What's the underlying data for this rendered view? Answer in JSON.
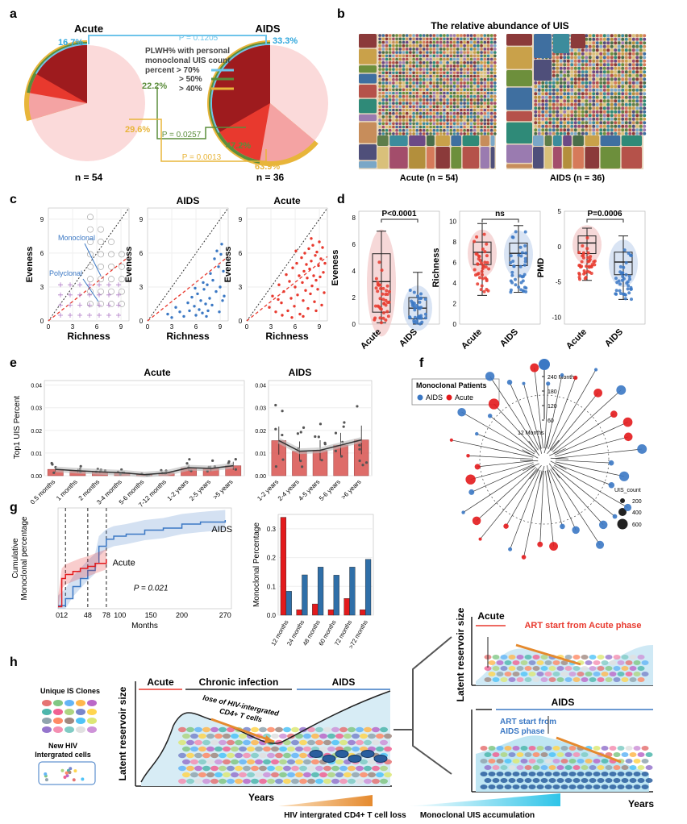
{
  "colors": {
    "dark_red": "#9e1b1e",
    "red": "#e8392e",
    "pink": "#f4a3a3",
    "light_pink": "#fbdada",
    "aids_blue": "#3b78c4",
    "green": "#5b8d3b",
    "cyan": "#27a8d8",
    "gold": "#e8b53a",
    "orange": "#e58a2e",
    "bar_red": "#e0443a",
    "bar_blue": "#2f6fa8"
  },
  "a": {
    "panel": "a",
    "left_title": "Acute",
    "right_title": "AIDS",
    "left_pcts": [
      "16.7%",
      "22.2%",
      "29.6%"
    ],
    "right_pcts": [
      "33.3%",
      "47.2%",
      "63.9%"
    ],
    "pvals": [
      "P = 0.1205",
      "P = 0.0257",
      "P = 0.0013"
    ],
    "legend_title_lines": [
      "PLWH% with personal",
      "monoclonal UIS count",
      "percent > 70%"
    ],
    "legend_items": [
      " > 50%",
      " > 40%"
    ],
    "left_n": "n = 54",
    "right_n": "n = 36",
    "chart_data": {
      "type": "pie",
      "title": "PLWH% with personal monoclonal UIS count percent",
      "series": [
        {
          "name": "Acute",
          "n": 54,
          "values": {
            ">70%": 16.7,
            ">50%": 22.2,
            ">40%": 29.6
          }
        },
        {
          "name": "AIDS",
          "n": 36,
          "values": {
            ">70%": 33.3,
            ">50%": 47.2,
            ">40%": 63.9
          }
        }
      ],
      "pvalues": {
        ">70%": 0.1205,
        ">50%": 0.0257,
        ">40%": 0.0013
      }
    }
  },
  "b": {
    "panel": "b",
    "title": "The relative abundance of UIS",
    "left_label": "Acute (n = 54)",
    "right_label": "AIDS (n = 36)"
  },
  "c": {
    "panel": "c",
    "xlabel": "Richness",
    "ylabel": "Eveness",
    "titles": [
      "",
      "AIDS",
      "Acute"
    ],
    "xticks": [
      "0",
      "3",
      "6",
      "9"
    ],
    "yticks": [
      "0",
      "3",
      "6",
      "9"
    ],
    "annotations": {
      "mono": "Monoclonal",
      "poly": "Polyclonal"
    },
    "chart_data": {
      "type": "scatter",
      "xlabel": "Richness",
      "ylabel": "Eveness",
      "xlim": [
        0,
        10
      ],
      "ylim": [
        0,
        10
      ],
      "series": [
        {
          "name": "AIDS",
          "points": [
            [
              2.5,
              0.6
            ],
            [
              3,
              0.3
            ],
            [
              3.5,
              1.2
            ],
            [
              4,
              0.8
            ],
            [
              4.5,
              0.4
            ],
            [
              5,
              1.6
            ],
            [
              5.2,
              0.9
            ],
            [
              5.5,
              2.1
            ],
            [
              5.8,
              1.3
            ],
            [
              6,
              0.5
            ],
            [
              6.2,
              2.4
            ],
            [
              6.4,
              1.0
            ],
            [
              6.6,
              1.8
            ],
            [
              6.8,
              0.7
            ],
            [
              7,
              2.8
            ],
            [
              7.2,
              1.5
            ],
            [
              7.4,
              3.2
            ],
            [
              7.5,
              0.9
            ],
            [
              7.7,
              2.0
            ],
            [
              7.8,
              4.2
            ],
            [
              8,
              1.4
            ],
            [
              8.1,
              3.6
            ],
            [
              8.3,
              5.5
            ],
            [
              8.5,
              2.6
            ],
            [
              8.6,
              6.2
            ],
            [
              8.8,
              4.8
            ],
            [
              9,
              3.0
            ],
            [
              9.1,
              5.9
            ],
            [
              9.2,
              6.8
            ],
            [
              9.3,
              1.8
            ],
            [
              9.4,
              4.4
            ],
            [
              9.5,
              2.2
            ],
            [
              8.9,
              0.8
            ],
            [
              6.9,
              3.4
            ],
            [
              5.9,
              2.9
            ],
            [
              7.3,
              0.4
            ]
          ]
        },
        {
          "name": "Acute",
          "points": [
            [
              2.8,
              1.2
            ],
            [
              3.2,
              2.2
            ],
            [
              3.6,
              0.8
            ],
            [
              4,
              3.2
            ],
            [
              4.3,
              1.6
            ],
            [
              4.6,
              2.6
            ],
            [
              4.9,
              4.1
            ],
            [
              5.1,
              0.9
            ],
            [
              5.3,
              3.5
            ],
            [
              5.5,
              2.0
            ],
            [
              5.7,
              4.7
            ],
            [
              5.9,
              1.3
            ],
            [
              6,
              3.0
            ],
            [
              6.2,
              5.1
            ],
            [
              6.3,
              2.3
            ],
            [
              6.5,
              4.0
            ],
            [
              6.6,
              0.6
            ],
            [
              6.8,
              5.6
            ],
            [
              6.9,
              3.4
            ],
            [
              7,
              1.8
            ],
            [
              7.1,
              4.4
            ],
            [
              7.2,
              6.0
            ],
            [
              7.3,
              2.7
            ],
            [
              7.4,
              5.0
            ],
            [
              7.5,
              3.8
            ],
            [
              7.6,
              1.1
            ],
            [
              7.7,
              6.4
            ],
            [
              7.8,
              4.6
            ],
            [
              7.9,
              2.4
            ],
            [
              8,
              5.3
            ],
            [
              8.1,
              3.1
            ],
            [
              8.2,
              6.7
            ],
            [
              8.3,
              4.0
            ],
            [
              8.4,
              1.7
            ],
            [
              8.5,
              5.8
            ],
            [
              8.6,
              3.6
            ],
            [
              8.7,
              6.1
            ],
            [
              8.8,
              2.8
            ],
            [
              8.9,
              4.9
            ],
            [
              9,
              7.0
            ],
            [
              9.1,
              3.9
            ],
            [
              9.2,
              5.5
            ],
            [
              9.3,
              1.4
            ],
            [
              9.4,
              6.5
            ],
            [
              9.5,
              4.3
            ],
            [
              9.6,
              2.5
            ],
            [
              8.0,
              7.3
            ],
            [
              7.0,
              0.4
            ],
            [
              6.1,
              6.2
            ],
            [
              5.6,
              0.3
            ],
            [
              4.4,
              0.5
            ],
            [
              9.7,
              5.1
            ],
            [
              3.9,
              1.9
            ],
            [
              8.6,
              0.9
            ]
          ]
        }
      ]
    }
  },
  "d": {
    "panel": "d",
    "plots": [
      {
        "ylabel": "Eveness",
        "sig": "P<0.0001",
        "yticks": [
          "0",
          "2",
          "4",
          "6",
          "8"
        ],
        "ymin": 0,
        "ymax": 8.5
      },
      {
        "ylabel": "Richness",
        "sig": "ns",
        "yticks": [
          "0",
          "2",
          "4",
          "6",
          "8",
          "10"
        ],
        "ymin": 0,
        "ymax": 11
      },
      {
        "ylabel": "PMD",
        "sig": "P=0.0006",
        "yticks": [
          "-10",
          "-5",
          "0",
          "5"
        ],
        "ymin": -11,
        "ymax": 5
      }
    ],
    "groups": [
      "Acute",
      "AIDS"
    ],
    "chart_data": {
      "type": "box",
      "groups": [
        "Acute",
        "AIDS"
      ],
      "series": [
        {
          "name": "Eveness",
          "pvalue": "P<0.0001",
          "Acute": {
            "min": 0.1,
            "q1": 0.9,
            "median": 3.2,
            "q3": 5.3,
            "max": 7.0
          },
          "AIDS": {
            "min": 0.0,
            "q1": 0.4,
            "median": 1.2,
            "q3": 2.0,
            "max": 3.9
          }
        },
        {
          "name": "Richness",
          "pvalue": "ns",
          "Acute": {
            "min": 2.8,
            "q1": 5.8,
            "median": 7.0,
            "q3": 8.0,
            "max": 9.8
          },
          "AIDS": {
            "min": 3.1,
            "q1": 5.7,
            "median": 6.9,
            "q3": 7.9,
            "max": 9.6
          }
        },
        {
          "name": "PMD",
          "pvalue": "P=0.0006",
          "Acute": {
            "min": -4.8,
            "q1": -1.0,
            "median": 0.5,
            "q3": 1.5,
            "max": 2.6
          },
          "AIDS": {
            "min": -7.5,
            "q1": -4.0,
            "median": -2.2,
            "q3": -0.8,
            "max": 1.5
          }
        }
      ]
    }
  },
  "e": {
    "panel": "e",
    "left_title": "Acute",
    "right_title": "AIDS",
    "ylabel": "Top1 UIS Percent",
    "left_yticks": [
      "0.00",
      "0.01",
      "0.02",
      "0.03",
      "0.04"
    ],
    "right_yticks": [
      "0.00",
      "0.01",
      "0.02",
      "0.03",
      "0.04"
    ],
    "chart_data": [
      {
        "type": "bar",
        "title": "Acute",
        "ylabel": "Top1 UIS Percent",
        "ylim": [
          0,
          0.04
        ],
        "categories": [
          "0.5 months",
          "1 months",
          "2 months",
          "3-4 months",
          "5-6 months",
          "7-12 months",
          "1-2 years",
          "2-5 years",
          ">5 years"
        ],
        "values": [
          0.0028,
          0.0022,
          0.0017,
          0.0013,
          0.0005,
          0.0012,
          0.0035,
          0.0032,
          0.0044
        ]
      },
      {
        "type": "bar",
        "title": "AIDS",
        "ylim": [
          0,
          0.04
        ],
        "categories": [
          "1-2 years",
          "2-4 years",
          "4-5 years",
          "5-6 years",
          ">6 years"
        ],
        "values": [
          0.0155,
          0.0108,
          0.0112,
          0.0135,
          0.0158
        ]
      }
    ]
  },
  "f": {
    "panel": "f",
    "legend_title": "Monoclonal Patients",
    "legend_items": [
      "AIDS",
      "Acute"
    ],
    "time_labels": [
      "240 Months",
      "180",
      "120",
      "60",
      "12 Months"
    ],
    "size_title": "UIS_count",
    "size_items": [
      "200",
      "400",
      "600"
    ]
  },
  "g": {
    "panel": "g",
    "ylabel_lines": [
      "Cumulative",
      "Monoclonal percentage"
    ],
    "xlabel": "Months",
    "xticks": [
      "012",
      "48",
      "78",
      "100",
      "150",
      "200",
      "270"
    ],
    "line_labels": [
      "AIDS",
      "Acute"
    ],
    "pvalue": "P = 0.021",
    "bar_ylabel": "Monoclonal Percentage",
    "bar_yticks": [
      "0.0",
      "0.1",
      "0.2",
      "0.3"
    ],
    "chart_data": [
      {
        "type": "line",
        "xlabel": "Months",
        "ylabel": "Cumulative Monoclonal percentage",
        "xlim": [
          0,
          280
        ],
        "ylim": [
          0,
          1
        ],
        "series": [
          {
            "name": "AIDS",
            "x": [
              0,
              12,
              24,
              36,
              48,
              60,
              66,
              78,
              90,
              110,
              140,
              170,
              200,
              230,
              270
            ],
            "y": [
              0.03,
              0.1,
              0.22,
              0.3,
              0.38,
              0.45,
              0.62,
              0.69,
              0.72,
              0.74,
              0.78,
              0.8,
              0.84,
              0.86,
              0.88
            ]
          },
          {
            "name": "Acute",
            "x": [
              0,
              6,
              12,
              24,
              36,
              48,
              60,
              78
            ],
            "y": [
              0.02,
              0.3,
              0.34,
              0.37,
              0.4,
              0.42,
              0.45,
              0.49
            ]
          }
        ]
      },
      {
        "type": "bar",
        "ylabel": "Monoclonal Percentage",
        "ylim": [
          0,
          0.35
        ],
        "categories": [
          "12 months",
          "24 months",
          "48 months",
          "60 months",
          "72 months",
          ">72 months"
        ],
        "series": [
          {
            "name": "Acute",
            "values": [
              0.34,
              0.019,
              0.039,
              0.019,
              0.058,
              0.019
            ]
          },
          {
            "name": "AIDS",
            "values": [
              0.083,
              0.14,
              0.167,
              0.139,
              0.167,
              0.194
            ]
          }
        ]
      }
    ]
  },
  "h": {
    "panel": "h",
    "legend": [
      "Unique IS Clones",
      "New HIV",
      "Intergrated cells"
    ],
    "phases": [
      "Acute",
      "Chronic infection",
      "AIDS"
    ],
    "ylabel": "Latent reservoir size",
    "xlabel": "Years",
    "loss_text_lines": [
      "lose of HIV-intergrated",
      "CD4+ T cells"
    ],
    "bottom_left": "HIV intergrated CD4+ T cell loss",
    "bottom_right": "Monoclonal UIS accumulation",
    "right_top": {
      "phase": "Acute",
      "art": "ART start from Acute phase",
      "ylabel": "Latent reservoir size"
    },
    "right_bottom": {
      "phase": "AIDS",
      "art_lines": [
        "ART start from",
        "AIDS phase"
      ],
      "xlabel": "Years"
    }
  }
}
